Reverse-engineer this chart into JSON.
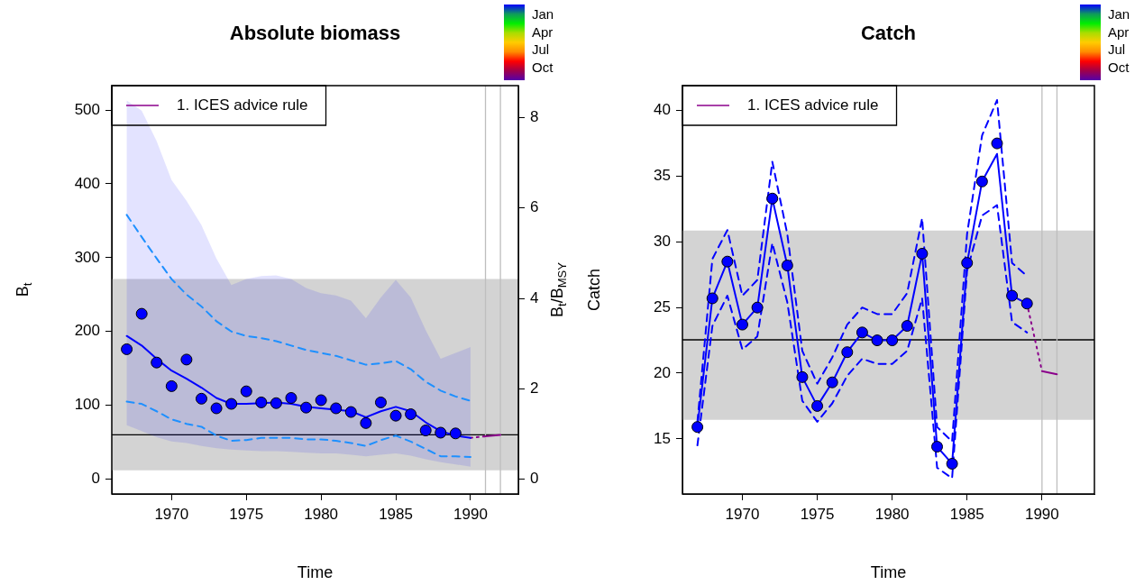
{
  "chart_data": [
    {
      "type": "line",
      "title": "Absolute biomass",
      "xlabel": "Time",
      "ylabel": "B$_{t}$",
      "y2label": "B$_{t}$/B$_{MSY}$",
      "legend": "top left",
      "grid": false,
      "annotations": [
        "Jan",
        "Apr",
        "Jul",
        "Oct"
      ],
      "xlim": [
        1966,
        1993.2
      ],
      "xticks": [
        1970,
        1975,
        1980,
        1985,
        1990
      ],
      "ylim": [
        -20,
        533
      ],
      "yticks": [
        0,
        100,
        200,
        300,
        400,
        500
      ],
      "y2lim": [
        -0.33,
        8.71
      ],
      "y2ticks": [
        0,
        2,
        4,
        6,
        8
      ],
      "bands": [
        {
          "axis": "y",
          "from": 12,
          "to": 271,
          "color": "#d3d3d3"
        }
      ],
      "ref_lines": [
        {
          "axis": "y",
          "value": 60,
          "color": "#000000"
        },
        {
          "axis": "x",
          "value": 1991,
          "color": "#bebebe"
        },
        {
          "axis": "x",
          "value": 1992,
          "color": "#bebebe"
        }
      ],
      "series": [
        {
          "type": "line",
          "color": "#0000ff",
          "x": [
            1967,
            1968,
            1969,
            1970,
            1971,
            1972,
            1973,
            1974,
            1975,
            1976,
            1977,
            1978,
            1979,
            1980,
            1981,
            1982,
            1983,
            1984,
            1985,
            1986,
            1987,
            1988,
            1989,
            1990
          ],
          "values": [
            194,
            181,
            163,
            147,
            136,
            124,
            110,
            102,
            102,
            103,
            104,
            102,
            98,
            96,
            94,
            92,
            84,
            92,
            98,
            92,
            77,
            65,
            59,
            56
          ],
          "lower": [
            73,
            65,
            57,
            51,
            49,
            45,
            42,
            40,
            39,
            38,
            38,
            37,
            36,
            35,
            35,
            33,
            31,
            33,
            35,
            32,
            27,
            23,
            20,
            17
          ],
          "upper": [
            513,
            499,
            458,
            405,
            377,
            344,
            299,
            263,
            271,
            275,
            276,
            271,
            259,
            252,
            249,
            242,
            218,
            246,
            270,
            246,
            202,
            163,
            171,
            179
          ]
        },
        {
          "type": "line",
          "color": "#1e90ff",
          "line_style": "dashed",
          "x": [
            1967,
            1968,
            1969,
            1970,
            1971,
            1972,
            1973,
            1974,
            1975,
            1976,
            1977,
            1978,
            1979,
            1980,
            1981,
            1982,
            1983,
            1984,
            1985,
            1986,
            1987,
            1988,
            1989,
            1990
          ],
          "values": [
            358,
            328,
            299,
            271,
            250,
            234,
            214,
            200,
            194,
            191,
            187,
            181,
            175,
            171,
            167,
            161,
            155,
            157,
            160,
            149,
            132,
            120,
            112,
            106
          ]
        },
        {
          "type": "line",
          "color": "#1e90ff",
          "line_style": "dashed",
          "x": [
            1967,
            1968,
            1969,
            1970,
            1971,
            1972,
            1973,
            1974,
            1975,
            1976,
            1977,
            1978,
            1979,
            1980,
            1981,
            1982,
            1983,
            1984,
            1985,
            1986,
            1987,
            1988,
            1989,
            1990
          ],
          "values": [
            105,
            102,
            92,
            81,
            75,
            71,
            59,
            52,
            53,
            56,
            56,
            56,
            54,
            54,
            52,
            49,
            45,
            53,
            59,
            51,
            41,
            31,
            31,
            30
          ]
        },
        {
          "type": "scatter",
          "color": "#0000ff",
          "marker": "circle",
          "x": [
            1967,
            1968,
            1969,
            1970,
            1971,
            1972,
            1973,
            1974,
            1975,
            1976,
            1977,
            1978,
            1979,
            1980,
            1981,
            1982,
            1983,
            1984,
            1985,
            1986,
            1987,
            1988,
            1989
          ],
          "values": [
            176,
            224,
            158,
            126,
            162,
            109,
            96,
            102,
            119,
            104,
            103,
            110,
            97,
            107,
            96,
            91,
            76,
            104,
            86,
            88,
            66,
            63,
            62
          ]
        },
        {
          "type": "line",
          "color": "#8b008b",
          "line_style": "dotted",
          "x": [
            1990,
            1991
          ],
          "values": [
            56,
            58
          ]
        },
        {
          "type": "line",
          "name": "1. ICES advice rule",
          "color": "#8b008b",
          "x": [
            1991,
            1992
          ],
          "values": [
            58,
            60
          ]
        }
      ]
    },
    {
      "type": "line",
      "title": "Catch",
      "xlabel": "Time",
      "ylabel": "Catch",
      "legend": "top left",
      "grid": false,
      "annotations": [
        "Jan",
        "Apr",
        "Jul",
        "Oct"
      ],
      "xlim": [
        1966,
        1993.5
      ],
      "xticks": [
        1970,
        1975,
        1980,
        1985,
        1990
      ],
      "ylim": [
        10.8,
        41.9
      ],
      "yticks": [
        15,
        20,
        25,
        30,
        35,
        40
      ],
      "bands": [
        {
          "axis": "y",
          "from": 16.45,
          "to": 30.86,
          "color": "#d3d3d3"
        }
      ],
      "ref_lines": [
        {
          "axis": "y",
          "value": 22.54,
          "color": "#000000"
        },
        {
          "axis": "x",
          "value": 1990,
          "color": "#bebebe"
        },
        {
          "axis": "x",
          "value": 1991,
          "color": "#bebebe"
        }
      ],
      "series": [
        {
          "type": "line",
          "color": "#0000ff",
          "x": [
            1967,
            1968,
            1969,
            1970,
            1971,
            1972,
            1973,
            1974,
            1975,
            1976,
            1977,
            1978,
            1979,
            1980,
            1981,
            1982,
            1983,
            1984,
            1985,
            1986,
            1987,
            1988,
            1989
          ],
          "values": [
            15.9,
            25.7,
            28.5,
            23.7,
            25.0,
            33.3,
            28.2,
            19.7,
            17.5,
            19.3,
            21.6,
            23.1,
            22.5,
            22.5,
            23.6,
            29.1,
            14.4,
            13.1,
            28.4,
            34.6,
            36.7,
            25.9,
            25.3
          ]
        },
        {
          "type": "line",
          "color": "#0000ff",
          "line_style": "dashed",
          "x": [
            1967,
            1968,
            1969,
            1970,
            1971,
            1972,
            1973,
            1974,
            1975,
            1976,
            1977,
            1978,
            1979,
            1980,
            1981,
            1982,
            1983,
            1984,
            1985,
            1986,
            1987,
            1988,
            1989
          ],
          "values": [
            16.3,
            28.7,
            30.9,
            25.9,
            27.1,
            36.1,
            30.6,
            21.7,
            19.2,
            21.2,
            23.7,
            25.0,
            24.5,
            24.5,
            26.1,
            31.8,
            15.9,
            14.8,
            30.6,
            38.1,
            40.8,
            28.4,
            27.4
          ]
        },
        {
          "type": "line",
          "color": "#0000ff",
          "line_style": "dashed",
          "x": [
            1967,
            1968,
            1969,
            1970,
            1971,
            1972,
            1973,
            1974,
            1975,
            1976,
            1977,
            1978,
            1979,
            1980,
            1981,
            1982,
            1983,
            1984,
            1985,
            1986,
            1987,
            1988,
            1989
          ],
          "values": [
            14.5,
            23.6,
            25.9,
            21.8,
            22.8,
            29.9,
            25.4,
            17.9,
            16.3,
            17.7,
            19.8,
            21.1,
            20.7,
            20.7,
            21.7,
            25.7,
            12.8,
            12.0,
            27.8,
            32.0,
            32.8,
            23.9,
            23.1
          ]
        },
        {
          "type": "scatter",
          "color": "#0000ff",
          "marker": "circle",
          "x": [
            1967,
            1968,
            1969,
            1970,
            1971,
            1972,
            1973,
            1974,
            1975,
            1976,
            1977,
            1978,
            1979,
            1980,
            1981,
            1982,
            1983,
            1984,
            1985,
            1986,
            1987,
            1988,
            1989
          ],
          "values": [
            15.9,
            25.7,
            28.5,
            23.7,
            25.0,
            33.3,
            28.2,
            19.7,
            17.5,
            19.3,
            21.6,
            23.1,
            22.5,
            22.5,
            23.6,
            29.1,
            14.4,
            13.1,
            28.4,
            34.6,
            37.5,
            25.9,
            25.3
          ]
        },
        {
          "type": "line",
          "color": "#8b008b",
          "line_style": "dotted",
          "x": [
            1989,
            1990
          ],
          "values": [
            25.3,
            20.15
          ]
        },
        {
          "type": "line",
          "name": "1. ICES advice rule",
          "color": "#8b008b",
          "x": [
            1990,
            1991
          ],
          "values": [
            20.15,
            19.92
          ]
        }
      ]
    }
  ]
}
